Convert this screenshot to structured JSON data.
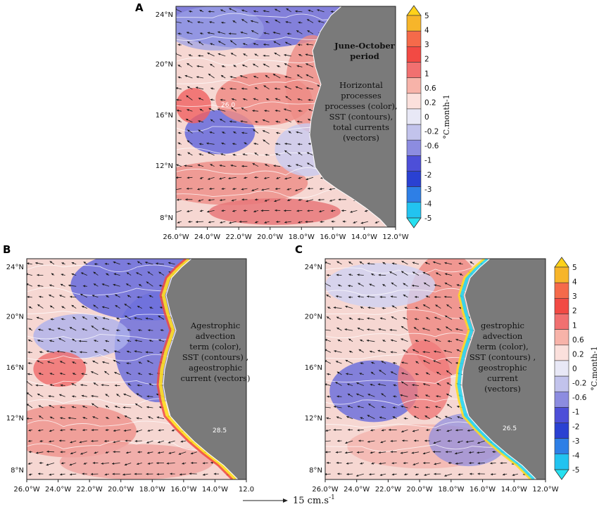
{
  "panels": [
    {
      "letter": "A",
      "title_lines": [
        "June-October",
        "period"
      ],
      "annotation_lines": [
        "Horizontal",
        "processes",
        "processes (color),",
        "SST (contours),",
        "total currents",
        "(vectors)"
      ],
      "lat_labels": [
        "24°N",
        "20°N",
        "16°N",
        "12°N",
        "8°N"
      ],
      "lon_labels": [
        "26.0°W",
        "24.0°W",
        "22.0°W",
        "20.0°W",
        "18.0°W",
        "16.0°W",
        "14.0°W",
        "12.0°W"
      ]
    },
    {
      "letter": "B",
      "title_lines": [],
      "annotation_lines": [
        "Agestrophic",
        "advection",
        "term (color),",
        "SST (contours) ,",
        "ageostrophic",
        "current (vectors)"
      ],
      "lat_labels": [
        "24°N",
        "20°N",
        "16°N",
        "12°N",
        "8°N"
      ],
      "lon_labels": [
        "26.0°W",
        "24.0°W",
        "22.0°W",
        "20.0°W",
        "18.0°W",
        "16.0°W",
        "14.0°W",
        "12.0"
      ]
    },
    {
      "letter": "C",
      "title_lines": [],
      "annotation_lines": [
        "gestrophic",
        "advection",
        "term (color),",
        "SST (contours) ,",
        "geostrophic",
        "current",
        "(vectors)"
      ],
      "lat_labels": [
        "24°N",
        "20°N",
        "16°N",
        "12°N",
        "8°N"
      ],
      "lon_labels": [
        "26.0°W",
        "24.0°W",
        "22.0°W",
        "20.0°W",
        "18.0°W",
        "16.0°W",
        "14.0°W",
        "12.0°W"
      ]
    }
  ],
  "contour_labels": [
    "26.0",
    "28.5",
    "26.5"
  ],
  "colorbar": {
    "labels": [
      "5",
      "4",
      "3",
      "2",
      "1",
      "0.6",
      "0.2",
      "0",
      "-0.2",
      "-0.6",
      "-1",
      "-2",
      "-3",
      "-4",
      "-5"
    ],
    "colors": [
      "#ffd21a",
      "#f7b52a",
      "#f56a4a",
      "#f24a44",
      "#f17070",
      "#f7b3a9",
      "#fbe0dc",
      "#e8e8f6",
      "#c2c3ec",
      "#8c8ce0",
      "#4d4fd8",
      "#2a41d2",
      "#2e7fe6",
      "#22c3f0",
      "#26e0f0"
    ],
    "unit": "°C.month-1"
  },
  "reference_vector": {
    "label": "15 cm.s",
    "exponent": "-1"
  },
  "colors": {
    "land": "#7a7a7a",
    "ocean_base": "#f6d7d2",
    "warm": "#ee8c86",
    "cool": "#6f71dc",
    "coast_yellow": "#ffdd20",
    "coast_cyan": "#28d8f2"
  }
}
